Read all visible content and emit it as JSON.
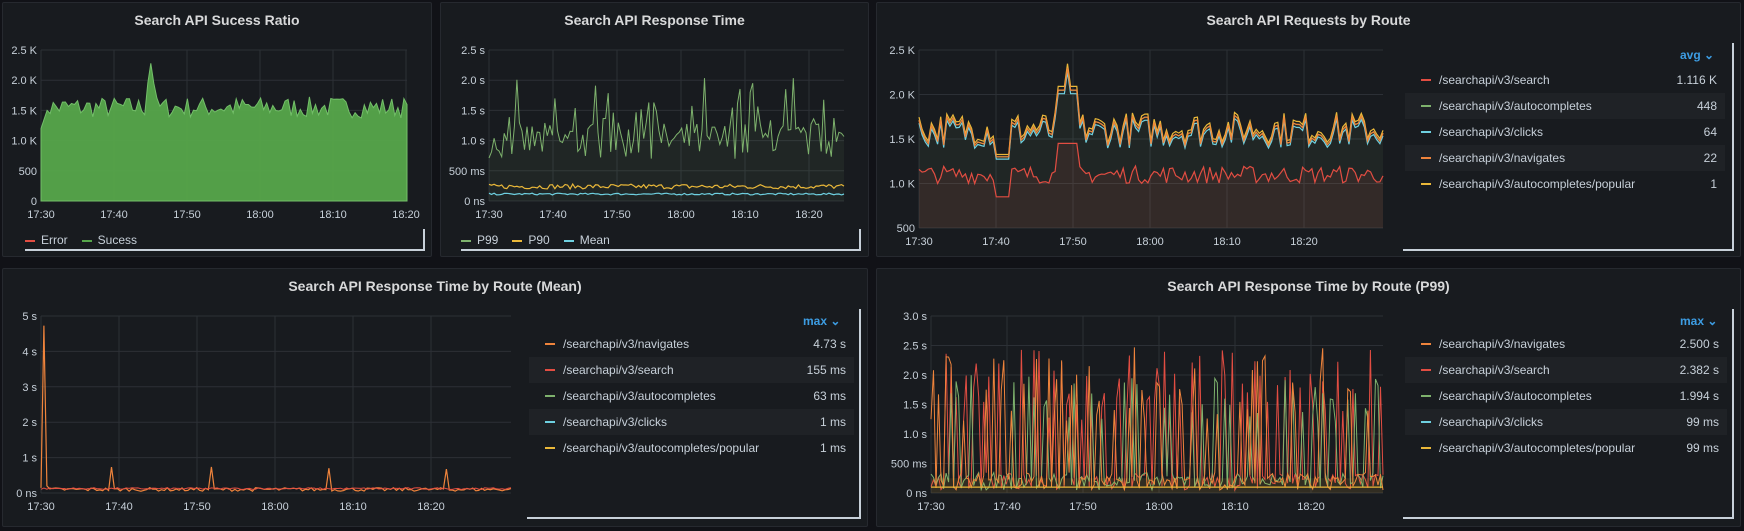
{
  "colors": {
    "green": "#56a64b",
    "red": "#e24d42",
    "yellow": "#eab839",
    "blue": "#6ed0e0",
    "orange": "#ef843c",
    "lightgreen": "#7eb26d"
  },
  "panels": {
    "p1": {
      "title": "Search API Sucess Ratio",
      "yticks": [
        "2.5 K",
        "2.0 K",
        "1.5 K",
        "1.0 K",
        "500",
        "0"
      ],
      "xticks": [
        "17:30",
        "17:40",
        "17:50",
        "18:00",
        "18:10",
        "18:20"
      ],
      "legend": [
        {
          "label": "Error",
          "color": "#e24d42"
        },
        {
          "label": "Sucess",
          "color": "#56a64b"
        }
      ]
    },
    "p2": {
      "title": "Search API Response Time",
      "yticks": [
        "2.5 s",
        "2.0 s",
        "1.5 s",
        "1.0 s",
        "500 ms",
        "0 ns"
      ],
      "xticks": [
        "17:30",
        "17:40",
        "17:50",
        "18:00",
        "18:10",
        "18:20"
      ],
      "legend": [
        {
          "label": "P99",
          "color": "#7eb26d"
        },
        {
          "label": "P90",
          "color": "#eab839"
        },
        {
          "label": "Mean",
          "color": "#6ed0e0"
        }
      ]
    },
    "p3": {
      "title": "Search API Requests by Route",
      "yticks": [
        "2.5 K",
        "2.0 K",
        "1.5 K",
        "1.0 K",
        "500"
      ],
      "xticks": [
        "17:30",
        "17:40",
        "17:50",
        "18:00",
        "18:10",
        "18:20"
      ],
      "legend_header": "avg",
      "legend": [
        {
          "label": "/searchapi/v3/search",
          "value": "1.116 K",
          "color": "#e24d42"
        },
        {
          "label": "/searchapi/v3/autocompletes",
          "value": "448",
          "color": "#7eb26d"
        },
        {
          "label": "/searchapi/v3/clicks",
          "value": "64",
          "color": "#6ed0e0"
        },
        {
          "label": "/searchapi/v3/navigates",
          "value": "22",
          "color": "#ef843c"
        },
        {
          "label": "/searchapi/v3/autocompletes/popular",
          "value": "1",
          "color": "#eab839"
        }
      ]
    },
    "p4": {
      "title": "Search API Response Time by Route (Mean)",
      "yticks": [
        "5 s",
        "4 s",
        "3 s",
        "2 s",
        "1 s",
        "0 ns"
      ],
      "xticks": [
        "17:30",
        "17:40",
        "17:50",
        "18:00",
        "18:10",
        "18:20"
      ],
      "legend_header": "max",
      "legend": [
        {
          "label": "/searchapi/v3/navigates",
          "value": "4.73 s",
          "color": "#ef843c"
        },
        {
          "label": "/searchapi/v3/search",
          "value": "155 ms",
          "color": "#e24d42"
        },
        {
          "label": "/searchapi/v3/autocompletes",
          "value": "63 ms",
          "color": "#7eb26d"
        },
        {
          "label": "/searchapi/v3/clicks",
          "value": "1 ms",
          "color": "#6ed0e0"
        },
        {
          "label": "/searchapi/v3/autocompletes/popular",
          "value": "1 ms",
          "color": "#eab839"
        }
      ]
    },
    "p5": {
      "title": "Search API Response Time by Route (P99)",
      "yticks": [
        "3.0 s",
        "2.5 s",
        "2.0 s",
        "1.5 s",
        "1.0 s",
        "500 ms",
        "0 ns"
      ],
      "xticks": [
        "17:30",
        "17:40",
        "17:50",
        "18:00",
        "18:10",
        "18:20"
      ],
      "legend_header": "max",
      "legend": [
        {
          "label": "/searchapi/v3/navigates",
          "value": "2.500 s",
          "color": "#ef843c"
        },
        {
          "label": "/searchapi/v3/search",
          "value": "2.382 s",
          "color": "#e24d42"
        },
        {
          "label": "/searchapi/v3/autocompletes",
          "value": "1.994 s",
          "color": "#7eb26d"
        },
        {
          "label": "/searchapi/v3/clicks",
          "value": "99 ms",
          "color": "#6ed0e0"
        },
        {
          "label": "/searchapi/v3/autocompletes/popular",
          "value": "99 ms",
          "color": "#eab839"
        }
      ]
    }
  }
}
